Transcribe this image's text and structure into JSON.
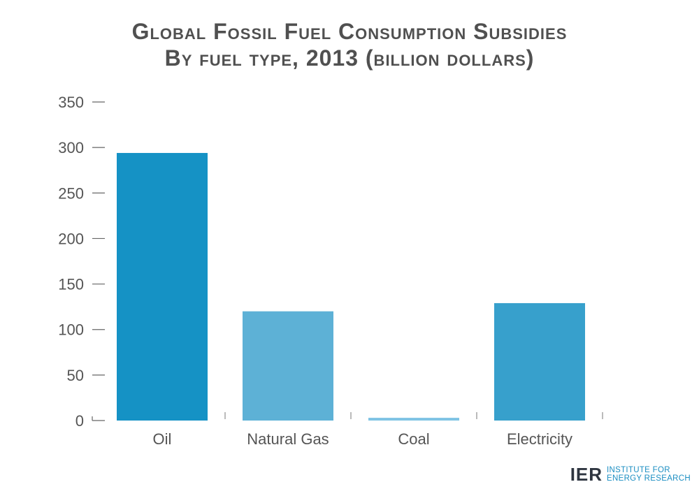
{
  "chart_data": {
    "type": "bar",
    "title": "Global Fossil Fuel Consumption Subsidies",
    "subtitle": "By fuel type, 2013 (billion dollars)",
    "categories": [
      "Oil",
      "Natural Gas",
      "Coal",
      "Electricity"
    ],
    "values": [
      294,
      120,
      3,
      129
    ],
    "bar_colors": [
      "#1592c5",
      "#5db1d6",
      "#7ec3e4",
      "#37a0cc"
    ],
    "ylim": [
      0,
      350
    ],
    "yticks": [
      0,
      50,
      100,
      150,
      200,
      250,
      300,
      350
    ],
    "ytick_labels": [
      "0",
      "50",
      "100",
      "150",
      "200",
      "250",
      "300",
      "350"
    ],
    "xlabel": "",
    "ylabel": "",
    "grid": false,
    "legend": "none"
  },
  "branding": {
    "logo_mark": "IER",
    "logo_line1": "INSTITUTE FOR",
    "logo_line2": "ENERGY RESEARCH",
    "logo_color": "#1b8ec2",
    "mark_color": "#2e3540"
  }
}
